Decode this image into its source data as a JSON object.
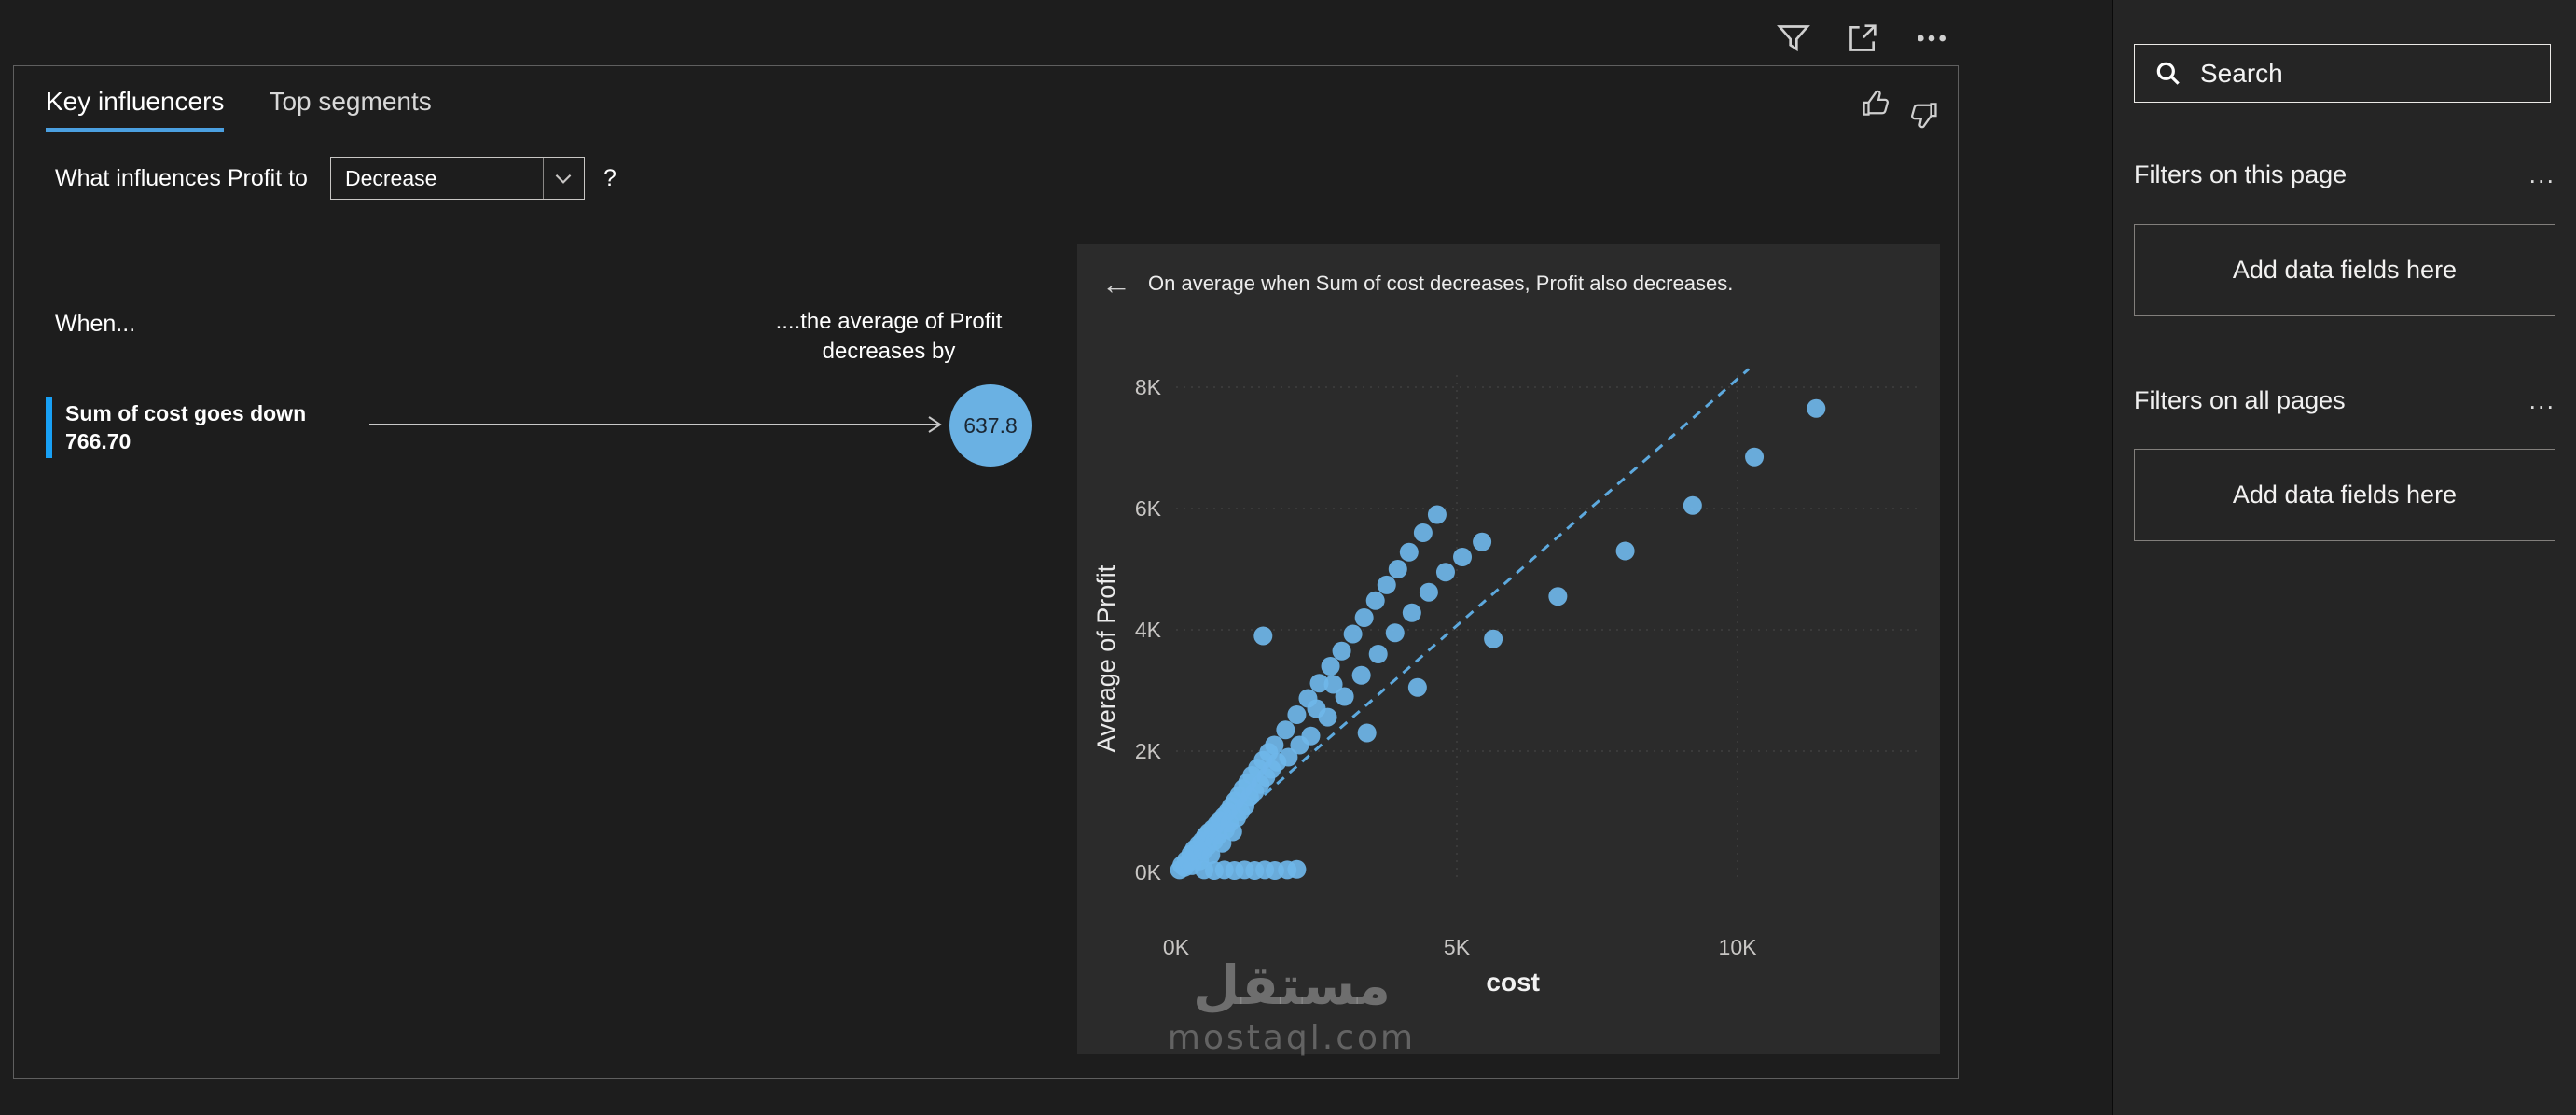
{
  "topbar": {
    "icons": [
      "filter-icon",
      "focus-mode-icon",
      "more-options-icon"
    ]
  },
  "visual": {
    "tabs": [
      {
        "label": "Key influencers",
        "active": true
      },
      {
        "label": "Top segments",
        "active": false
      }
    ],
    "question": {
      "prefix": "What influences Profit to",
      "selected": "Decrease",
      "help": "?"
    },
    "left": {
      "when_label": "When...",
      "influencers": [
        {
          "title": "Sum of cost goes down",
          "value": "766.70"
        }
      ],
      "effect_label": "....the average of Profit decreases by",
      "effect_value": "637.8"
    }
  },
  "chart_data": {
    "type": "scatter",
    "title": "On average when Sum of cost decreases, Profit also decreases.",
    "xlabel": "cost",
    "ylabel": "Average of Profit",
    "xlim": [
      0,
      13200
    ],
    "ylim": [
      0,
      8200
    ],
    "grid": "dotted",
    "legend": "none",
    "point_color": "#6fb6e9",
    "x_ticks": [
      {
        "v": 0,
        "label": "0K"
      },
      {
        "v": 5000,
        "label": "5K"
      },
      {
        "v": 10000,
        "label": "10K"
      }
    ],
    "y_ticks": [
      {
        "v": 0,
        "label": "0K"
      },
      {
        "v": 2000,
        "label": "2K"
      },
      {
        "v": 4000,
        "label": "4K"
      },
      {
        "v": 6000,
        "label": "6K"
      },
      {
        "v": 8000,
        "label": "8K"
      }
    ],
    "trend_line": {
      "x": [
        0,
        10200
      ],
      "y": [
        0,
        8300
      ],
      "style": "dashed",
      "color": "#5da9de"
    },
    "points": [
      [
        60,
        40
      ],
      [
        100,
        120
      ],
      [
        150,
        80
      ],
      [
        180,
        200
      ],
      [
        220,
        160
      ],
      [
        260,
        300
      ],
      [
        280,
        110
      ],
      [
        320,
        380
      ],
      [
        360,
        280
      ],
      [
        400,
        460
      ],
      [
        420,
        190
      ],
      [
        460,
        520
      ],
      [
        480,
        350
      ],
      [
        520,
        600
      ],
      [
        560,
        430
      ],
      [
        580,
        660
      ],
      [
        620,
        290
      ],
      [
        650,
        720
      ],
      [
        680,
        520
      ],
      [
        720,
        790
      ],
      [
        750,
        610
      ],
      [
        780,
        860
      ],
      [
        820,
        480
      ],
      [
        850,
        930
      ],
      [
        880,
        700
      ],
      [
        920,
        1000
      ],
      [
        950,
        810
      ],
      [
        980,
        1090
      ],
      [
        1010,
        670
      ],
      [
        1050,
        1180
      ],
      [
        1080,
        900
      ],
      [
        1120,
        1270
      ],
      [
        1150,
        1000
      ],
      [
        1190,
        1380
      ],
      [
        1230,
        1100
      ],
      [
        1270,
        1480
      ],
      [
        1310,
        1240
      ],
      [
        1350,
        1600
      ],
      [
        1400,
        1330
      ],
      [
        1450,
        1720
      ],
      [
        1500,
        1450
      ],
      [
        1550,
        1850
      ],
      [
        1600,
        1570
      ],
      [
        1650,
        1980
      ],
      [
        1700,
        1700
      ],
      [
        1750,
        2100
      ],
      [
        1800,
        1820
      ],
      [
        500,
        40
      ],
      [
        680,
        30
      ],
      [
        860,
        40
      ],
      [
        1040,
        30
      ],
      [
        1220,
        40
      ],
      [
        1400,
        30
      ],
      [
        1580,
        40
      ],
      [
        1760,
        30
      ],
      [
        1980,
        40
      ],
      [
        2150,
        50
      ],
      [
        1550,
        3900
      ],
      [
        1950,
        2350
      ],
      [
        2150,
        2600
      ],
      [
        2350,
        2870
      ],
      [
        2550,
        3120
      ],
      [
        2750,
        3400
      ],
      [
        2950,
        3650
      ],
      [
        3150,
        3930
      ],
      [
        3350,
        4200
      ],
      [
        3550,
        4480
      ],
      [
        3750,
        4740
      ],
      [
        3950,
        5000
      ],
      [
        4150,
        5280
      ],
      [
        4400,
        5600
      ],
      [
        4650,
        5900
      ],
      [
        2400,
        2250
      ],
      [
        2700,
        2560
      ],
      [
        3000,
        2900
      ],
      [
        3300,
        3250
      ],
      [
        3600,
        3600
      ],
      [
        3900,
        3950
      ],
      [
        4200,
        4280
      ],
      [
        4500,
        4620
      ],
      [
        4800,
        4950
      ],
      [
        5100,
        5200
      ],
      [
        5450,
        5450
      ],
      [
        2000,
        1900
      ],
      [
        2200,
        2100
      ],
      [
        2500,
        2700
      ],
      [
        2800,
        3100
      ],
      [
        3400,
        2300
      ],
      [
        4300,
        3050
      ],
      [
        5650,
        3850
      ],
      [
        6800,
        4550
      ],
      [
        8000,
        5300
      ],
      [
        9200,
        6050
      ],
      [
        10300,
        6850
      ],
      [
        11400,
        7650
      ]
    ]
  },
  "watermark": {
    "arabic": "مستقل",
    "latin": "mostaql.com"
  },
  "sidebar": {
    "search_placeholder": "Search",
    "sections": [
      {
        "title": "Filters on this page",
        "more": "...",
        "dropzone": "Add data fields here"
      },
      {
        "title": "Filters on all pages",
        "more": "...",
        "dropzone": "Add data fields here"
      }
    ]
  },
  "colors": {
    "accent_blue": "#4ba0e1",
    "dot_blue": "#6fb6e9",
    "influencer_bar_blue": "#18a0f5",
    "circle_blue": "#6ab1e3",
    "panel_bg": "#2b2b2b",
    "page_bg": "#1d1d1d",
    "sidebar_bg": "#252525"
  }
}
